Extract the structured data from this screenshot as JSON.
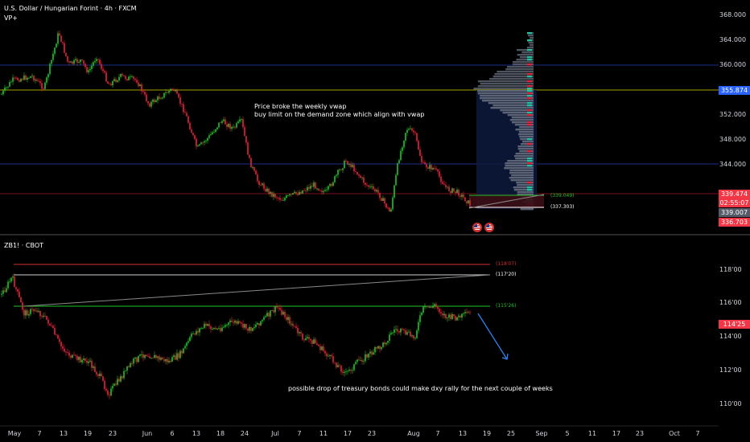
{
  "top_panel": {
    "title": "U.S. Dollar / Hungarian Forint · 4h · FXCM",
    "indicator": "VP+",
    "annotation_line1": "Price broke the weekly vwap",
    "annotation_line2": "buy limit on the demand zone which align with vwap",
    "price_axis": [
      "368.000",
      "364.000",
      "360.000",
      "352.000",
      "348.000",
      "344.000"
    ],
    "tags": {
      "vwap": "355.874",
      "last": "339.474",
      "countdown": "02:55:07",
      "level1": "339.007",
      "level2": "336.703"
    },
    "level_labels": {
      "upper": "(339.049)",
      "lower": "(337.303)"
    }
  },
  "bottom_panel": {
    "title": "ZB1! · CBOT",
    "annotation": "possible drop of treasury bonds could make dxy rally for the next couple of weeks",
    "price_axis": [
      "118'00",
      "116'00",
      "114'00",
      "112'00",
      "110'00"
    ],
    "tag_last": "114'25",
    "level_labels": {
      "red": "(118'07)",
      "white": "(117'20)",
      "green": "(115'26)"
    }
  },
  "time_axis": [
    "May",
    "7",
    "13",
    "19",
    "23",
    "Jun",
    "6",
    "13",
    "18",
    "24",
    "Jul",
    "7",
    "11",
    "17",
    "23",
    "Aug",
    "7",
    "13",
    "19",
    "25",
    "Sep",
    "5",
    "11",
    "17",
    "23",
    "Oct",
    "7"
  ],
  "colors": {
    "background": "#000000",
    "bull": "#22c32a",
    "bear": "#e8233a",
    "vwap_line": "#a5a000",
    "blue_tag": "#2962ff",
    "red_tag": "#f23645",
    "gray_tag": "#555a66",
    "arrow": "#2f80ed"
  }
}
